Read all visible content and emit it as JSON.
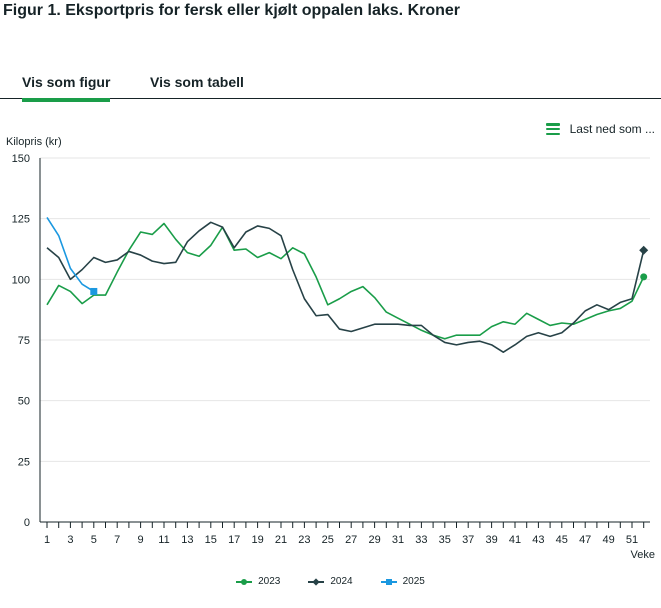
{
  "title": "Figur 1. Eksportpris for fersk eller kjølt oppalen laks. Kroner",
  "tabs": [
    {
      "label": "Vis som figur",
      "active": true
    },
    {
      "label": "Vis som tabell",
      "active": false
    }
  ],
  "download": {
    "label": "Last ned som ...",
    "icon": "hamburger-menu-icon"
  },
  "chart_data": {
    "type": "line",
    "ylabel": "Kilopris (kr)",
    "xlabel": "Veke",
    "ylim": [
      0,
      150
    ],
    "yticks": [
      0,
      25,
      50,
      75,
      100,
      125,
      150
    ],
    "xlim": [
      1,
      52
    ],
    "xticks": [
      1,
      3,
      5,
      7,
      9,
      11,
      13,
      15,
      17,
      19,
      21,
      23,
      25,
      27,
      29,
      31,
      33,
      35,
      37,
      39,
      41,
      43,
      45,
      47,
      49,
      51
    ],
    "grid": "horizontal",
    "legend_position": "bottom-center",
    "series": [
      {
        "name": "2023",
        "color": "#1a9d49",
        "marker": "circle",
        "values": [
          89.5,
          97.5,
          95,
          90,
          93.5,
          93.5,
          103,
          112,
          119.5,
          118.5,
          123,
          116.5,
          111,
          109.5,
          114,
          121.5,
          112,
          112.5,
          109,
          111,
          108.5,
          113,
          110.5,
          101,
          89.5,
          92,
          95,
          97,
          92.5,
          86.5,
          84,
          81.5,
          79,
          77,
          75.5,
          77,
          77,
          77,
          80.5,
          82.5,
          81.5,
          86,
          83.5,
          81,
          82,
          81.5,
          83.5,
          85.5,
          87,
          88,
          91,
          101
        ]
      },
      {
        "name": "2024",
        "color": "#274247",
        "marker": "diamond",
        "values": [
          113,
          109,
          100,
          104,
          109,
          107,
          108,
          111.5,
          110,
          107.5,
          106.5,
          107,
          115.5,
          120,
          123.5,
          121.5,
          113,
          119.5,
          122,
          121,
          118,
          104,
          92,
          85,
          85.5,
          79.5,
          78.5,
          80,
          81.5,
          81.5,
          81.5,
          81,
          81,
          77,
          74,
          73,
          74,
          74.5,
          73,
          70,
          73,
          76.5,
          78,
          76.5,
          78,
          82,
          87,
          89.5,
          87.5,
          90.5,
          92,
          112
        ]
      },
      {
        "name": "2025",
        "color": "#1b98e0",
        "marker": "square",
        "values": [
          125.5,
          118,
          104.5,
          98,
          95
        ]
      }
    ]
  }
}
